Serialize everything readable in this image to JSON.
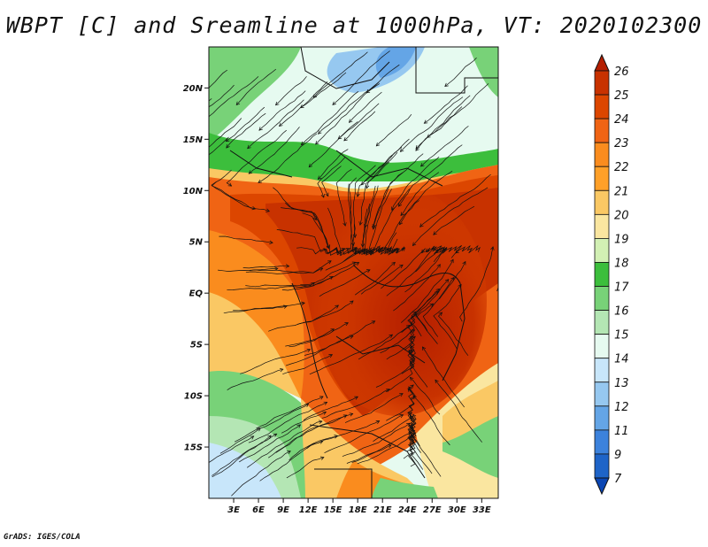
{
  "title": "WBPT [C] and Sreamline at 1000hPa, VT: 2020102300",
  "footer": "GrADS: IGES/COLA",
  "map": {
    "lon_range": [
      0,
      35
    ],
    "lat_range": [
      -20,
      24
    ],
    "lat_ticks": [
      "20N",
      "15N",
      "10N",
      "5N",
      "EQ",
      "5S",
      "10S",
      "15S"
    ],
    "lon_ticks": [
      "3E",
      "6E",
      "9E",
      "12E",
      "15E",
      "18E",
      "21E",
      "24E",
      "27E",
      "30E",
      "33E"
    ],
    "field": "wet bulb potential temperature",
    "overlay": "streamlines"
  },
  "colorbar": {
    "labels": [
      "26",
      "25",
      "24",
      "23",
      "22",
      "21",
      "20",
      "19",
      "18",
      "17",
      "16",
      "15",
      "14",
      "13",
      "12",
      "11",
      "9",
      "7"
    ],
    "colors": [
      "#b41e00",
      "#c83200",
      "#dc4600",
      "#f06414",
      "#fa8c1e",
      "#ffa028",
      "#fac864",
      "#fae6a0",
      "#d2f0b4",
      "#3cbe3c",
      "#78d278",
      "#b4e6b4",
      "#e6faf0",
      "#c8e6fa",
      "#96c8f0",
      "#64a5e6",
      "#3c82dc",
      "#1e64c8",
      "#0a46b4"
    ]
  }
}
